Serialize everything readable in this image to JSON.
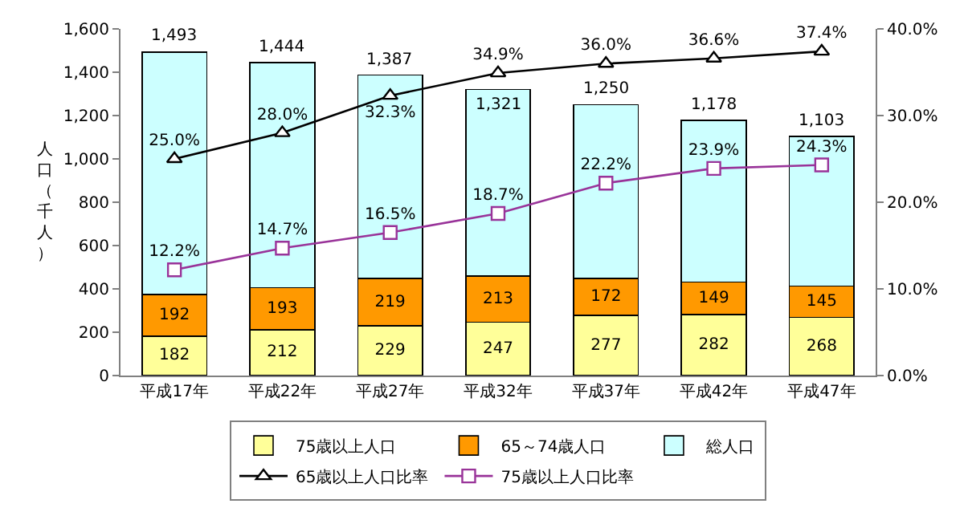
{
  "chart_data": {
    "type": "bar",
    "stacked": true,
    "categories": [
      "平成17年",
      "平成22年",
      "平成27年",
      "平成32年",
      "平成37年",
      "平成42年",
      "平成47年"
    ],
    "ylabel": "人口（千人）",
    "ylim": [
      0,
      1600
    ],
    "yticks": [
      0,
      200,
      400,
      600,
      800,
      {
        "value": 1000,
        "label": "1,000"
      },
      {
        "value": 1200,
        "label": "1,200"
      },
      {
        "value": 1400,
        "label": "1,400"
      },
      {
        "value": 1600,
        "label": "1,600"
      }
    ],
    "y2lim": [
      0,
      40
    ],
    "y2ticks": [
      {
        "value": 0,
        "label": "0.0%"
      },
      {
        "value": 10,
        "label": "10.0%"
      },
      {
        "value": 20,
        "label": "20.0%"
      },
      {
        "value": 30,
        "label": "30.0%"
      },
      {
        "value": 40,
        "label": "40.0%"
      }
    ],
    "series": [
      {
        "name": "75歳以上人口",
        "color": "#ffff99",
        "values": [
          182,
          212,
          229,
          247,
          277,
          282,
          268
        ],
        "value_labels": [
          "182",
          "212",
          "229",
          "247",
          "277",
          "282",
          "268"
        ]
      },
      {
        "name": "65～74歳人口",
        "color": "#ff9900",
        "values": [
          192,
          193,
          219,
          213,
          172,
          149,
          145
        ],
        "value_labels": [
          "192",
          "193",
          "219",
          "213",
          "172",
          "149",
          "145"
        ]
      },
      {
        "name": "総人口",
        "color": "#ccffff",
        "values": [
          1119,
          1039,
          939,
          861,
          801,
          747,
          690
        ]
      },
      {
        "name": "65歳以上人口比率",
        "type": "line",
        "axis": "y2",
        "color": "#000000",
        "marker": "triangle",
        "values": [
          25.0,
          28.0,
          32.3,
          34.9,
          36.0,
          36.6,
          37.4
        ],
        "value_labels": [
          "25.0%",
          "28.0%",
          "32.3%",
          "34.9%",
          "36.0%",
          "36.6%",
          "37.4%"
        ]
      },
      {
        "name": "75歳以上人口比率",
        "type": "line",
        "axis": "y2",
        "color": "#993399",
        "marker": "square",
        "values": [
          12.2,
          14.7,
          16.5,
          18.7,
          22.2,
          23.9,
          24.3
        ],
        "value_labels": [
          "12.2%",
          "14.7%",
          "16.5%",
          "18.7%",
          "22.2%",
          "23.9%",
          "24.3%"
        ]
      }
    ],
    "totals": [
      "1,493",
      "1,444",
      "1,387",
      "1,321",
      "1,250",
      "1,178",
      "1,103"
    ],
    "legend": "bottom"
  }
}
